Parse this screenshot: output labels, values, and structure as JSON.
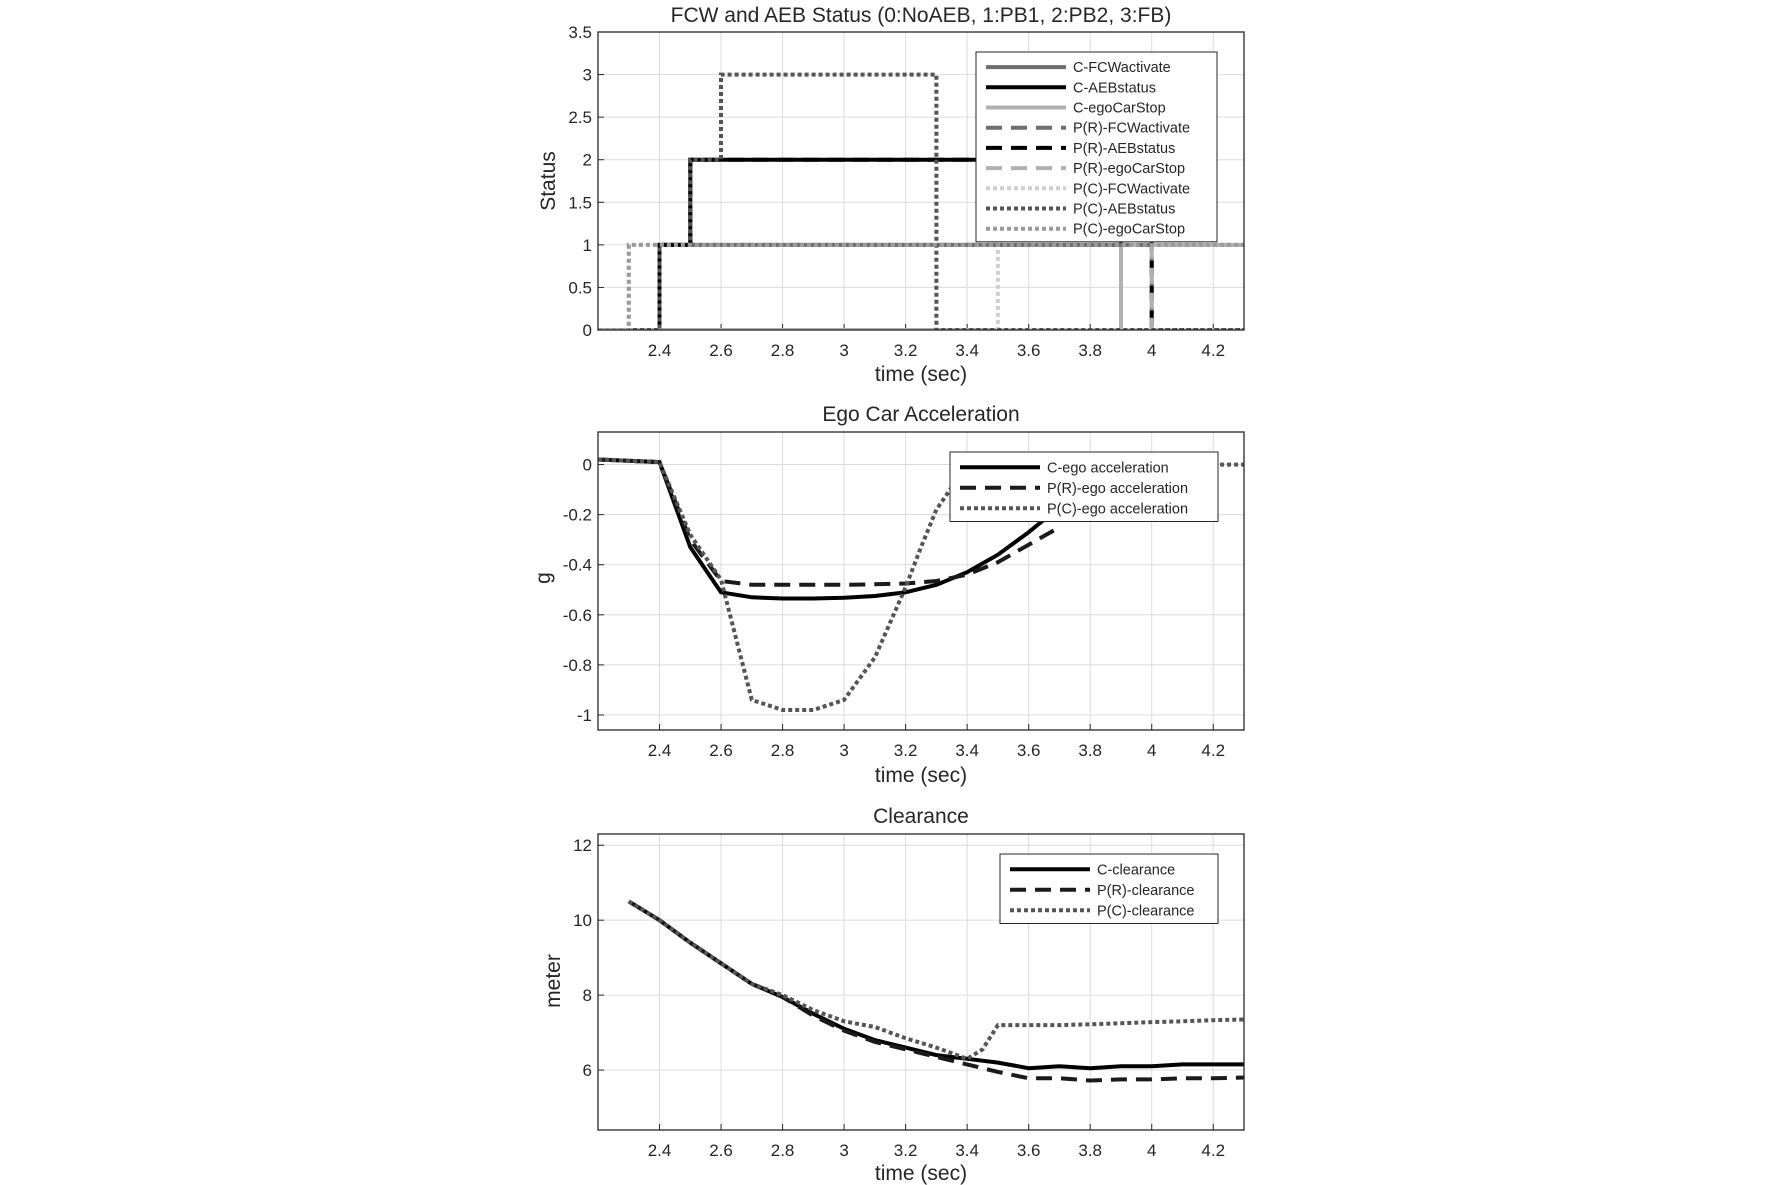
{
  "chart_data": [
    {
      "type": "line",
      "title": "FCW and AEB Status (0:NoAEB, 1:PB1, 2:PB2, 3:FB)",
      "xlabel": "time (sec)",
      "ylabel": "Status",
      "xlim": [
        2.2,
        4.3
      ],
      "ylim": [
        0,
        3.5
      ],
      "xticks": [
        "2.4",
        "2.6",
        "2.8",
        "3",
        "3.2",
        "3.4",
        "3.6",
        "3.8",
        "4",
        "4.2"
      ],
      "yticks": [
        "0",
        "0.5",
        "1",
        "1.5",
        "2",
        "2.5",
        "3",
        "3.5"
      ],
      "grid": true,
      "legend_position": "top-right",
      "series": [
        {
          "name": "C-FCWactivate",
          "style": "solid",
          "color": "#6e6e6e",
          "width": 4,
          "x": [
            2.2,
            2.4,
            2.4,
            3.9,
            3.9,
            4.3
          ],
          "y": [
            0,
            0,
            1,
            1,
            0,
            0
          ]
        },
        {
          "name": "C-AEBstatus",
          "style": "solid",
          "color": "#000000",
          "width": 4,
          "x": [
            2.2,
            2.4,
            2.4,
            2.5,
            2.5,
            3.9,
            3.9,
            4.3
          ],
          "y": [
            0,
            0,
            1,
            1,
            2,
            2,
            0,
            0
          ]
        },
        {
          "name": "C-egoCarStop",
          "style": "solid",
          "color": "#b0b0b0",
          "width": 4,
          "x": [
            2.2,
            3.9,
            3.9,
            4.3
          ],
          "y": [
            0,
            0,
            1,
            1
          ]
        },
        {
          "name": "P(R)-FCWactivate",
          "style": "dashed",
          "color": "#6e6e6e",
          "width": 4,
          "x": [
            2.2,
            2.4,
            2.4,
            4.0,
            4.0,
            4.3
          ],
          "y": [
            0,
            0,
            1,
            1,
            0,
            0
          ]
        },
        {
          "name": "P(R)-AEBstatus",
          "style": "dashed",
          "color": "#000000",
          "width": 4,
          "x": [
            2.2,
            2.4,
            2.4,
            2.5,
            2.5,
            4.0,
            4.0,
            4.3
          ],
          "y": [
            0,
            0,
            1,
            1,
            2,
            2,
            0,
            0
          ]
        },
        {
          "name": "P(R)-egoCarStop",
          "style": "dashed",
          "color": "#b0b0b0",
          "width": 4,
          "x": [
            2.2,
            4.0,
            4.0,
            4.3
          ],
          "y": [
            0,
            0,
            1,
            1
          ]
        },
        {
          "name": "P(C)-FCWactivate",
          "style": "dotted",
          "color": "#cfcfcf",
          "width": 4,
          "x": [
            2.2,
            2.3,
            2.3,
            3.5,
            3.5,
            4.3
          ],
          "y": [
            0,
            0,
            1,
            1,
            0,
            0
          ]
        },
        {
          "name": "P(C)-AEBstatus",
          "style": "dotted",
          "color": "#555555",
          "width": 4,
          "x": [
            2.2,
            2.4,
            2.4,
            2.5,
            2.5,
            2.6,
            2.6,
            3.3,
            3.3,
            4.3
          ],
          "y": [
            0,
            0,
            1,
            1,
            2,
            2,
            3,
            3,
            0,
            0
          ]
        },
        {
          "name": "P(C)-egoCarStop",
          "style": "dotted",
          "color": "#9a9a9a",
          "width": 4,
          "x": [
            2.2,
            2.3,
            2.3,
            3.4,
            3.4,
            4.3
          ],
          "y": [
            0,
            0,
            1,
            1,
            1,
            1
          ]
        }
      ]
    },
    {
      "type": "line",
      "title": "Ego Car Acceleration",
      "xlabel": "time (sec)",
      "ylabel": "g",
      "xlim": [
        2.2,
        4.3
      ],
      "ylim": [
        -1.06,
        0.13
      ],
      "xticks": [
        "2.4",
        "2.6",
        "2.8",
        "3",
        "3.2",
        "3.4",
        "3.6",
        "3.8",
        "4",
        "4.2"
      ],
      "yticks": [
        "0",
        "-0.2",
        "-0.4",
        "-0.6",
        "-0.8",
        "-1"
      ],
      "grid": true,
      "legend_position": "top-right",
      "series": [
        {
          "name": "C-ego acceleration",
          "style": "solid",
          "color": "#000000",
          "width": 4,
          "x": [
            2.2,
            2.4,
            2.5,
            2.6,
            2.7,
            2.8,
            2.9,
            3.0,
            3.1,
            3.2,
            3.3,
            3.4,
            3.5,
            3.6,
            3.7
          ],
          "y": [
            0.02,
            0.01,
            -0.33,
            -0.51,
            -0.53,
            -0.535,
            -0.535,
            -0.532,
            -0.525,
            -0.51,
            -0.48,
            -0.43,
            -0.36,
            -0.27,
            -0.17
          ]
        },
        {
          "name": "P(R)-ego acceleration",
          "style": "dashed",
          "color": "#1a1a1a",
          "width": 4,
          "x": [
            2.2,
            2.4,
            2.5,
            2.6,
            2.7,
            2.8,
            2.9,
            3.0,
            3.1,
            3.2,
            3.3,
            3.4,
            3.5,
            3.6,
            3.7
          ],
          "y": [
            0.02,
            0.01,
            -0.3,
            -0.465,
            -0.48,
            -0.48,
            -0.48,
            -0.48,
            -0.478,
            -0.475,
            -0.465,
            -0.44,
            -0.39,
            -0.32,
            -0.25
          ]
        },
        {
          "name": "P(C)-ego acceleration",
          "style": "dotted",
          "color": "#555555",
          "width": 4,
          "x": [
            2.2,
            2.4,
            2.5,
            2.6,
            2.7,
            2.8,
            2.9,
            3.0,
            3.1,
            3.2,
            3.25,
            3.3,
            3.35,
            3.4,
            3.5,
            3.6,
            3.8,
            4.0,
            4.3
          ],
          "y": [
            0.02,
            0.01,
            -0.28,
            -0.46,
            -0.94,
            -0.98,
            -0.98,
            -0.94,
            -0.77,
            -0.49,
            -0.33,
            -0.18,
            -0.09,
            -0.02,
            0.0,
            0.0,
            0.0,
            0.0,
            0.0
          ]
        }
      ]
    },
    {
      "type": "line",
      "title": "Clearance",
      "xlabel": "time (sec)",
      "ylabel": "meter",
      "xlim": [
        2.2,
        4.3
      ],
      "ylim": [
        4.4,
        12.3
      ],
      "xticks": [
        "2.4",
        "2.6",
        "2.8",
        "3",
        "3.2",
        "3.4",
        "3.6",
        "3.8",
        "4",
        "4.2"
      ],
      "yticks": [
        "12",
        "10",
        "8",
        "6"
      ],
      "grid": true,
      "legend_position": "top-right",
      "series": [
        {
          "name": "C-clearance",
          "style": "solid",
          "color": "#000000",
          "width": 4,
          "x": [
            2.3,
            2.4,
            2.5,
            2.6,
            2.7,
            2.8,
            2.9,
            3.0,
            3.1,
            3.2,
            3.3,
            3.4,
            3.5,
            3.6,
            3.7,
            3.8,
            3.9,
            4.0,
            4.1,
            4.2,
            4.3
          ],
          "y": [
            10.5,
            10.0,
            9.4,
            8.85,
            8.3,
            7.95,
            7.5,
            7.1,
            6.8,
            6.6,
            6.4,
            6.3,
            6.2,
            6.05,
            6.1,
            6.05,
            6.1,
            6.1,
            6.15,
            6.15,
            6.15
          ]
        },
        {
          "name": "P(R)-clearance",
          "style": "dashed",
          "color": "#1a1a1a",
          "width": 4,
          "x": [
            2.3,
            2.4,
            2.5,
            2.6,
            2.7,
            2.8,
            2.9,
            3.0,
            3.1,
            3.2,
            3.3,
            3.4,
            3.5,
            3.6,
            3.7,
            3.8,
            3.9,
            4.0,
            4.1,
            4.2,
            4.3
          ],
          "y": [
            10.5,
            10.0,
            9.4,
            8.85,
            8.3,
            7.95,
            7.45,
            7.05,
            6.75,
            6.55,
            6.35,
            6.15,
            5.95,
            5.78,
            5.78,
            5.72,
            5.75,
            5.75,
            5.78,
            5.78,
            5.8
          ]
        },
        {
          "name": "P(C)-clearance",
          "style": "dotted",
          "color": "#555555",
          "width": 4,
          "x": [
            2.3,
            2.4,
            2.5,
            2.6,
            2.7,
            2.8,
            2.9,
            3.0,
            3.1,
            3.2,
            3.3,
            3.4,
            3.45,
            3.5,
            3.6,
            3.7,
            3.8,
            3.9,
            4.0,
            4.1,
            4.2,
            4.3
          ],
          "y": [
            10.5,
            10.0,
            9.4,
            8.85,
            8.3,
            8.0,
            7.6,
            7.3,
            7.15,
            6.85,
            6.6,
            6.3,
            6.55,
            7.2,
            7.2,
            7.2,
            7.22,
            7.25,
            7.28,
            7.3,
            7.33,
            7.35
          ]
        }
      ]
    }
  ]
}
